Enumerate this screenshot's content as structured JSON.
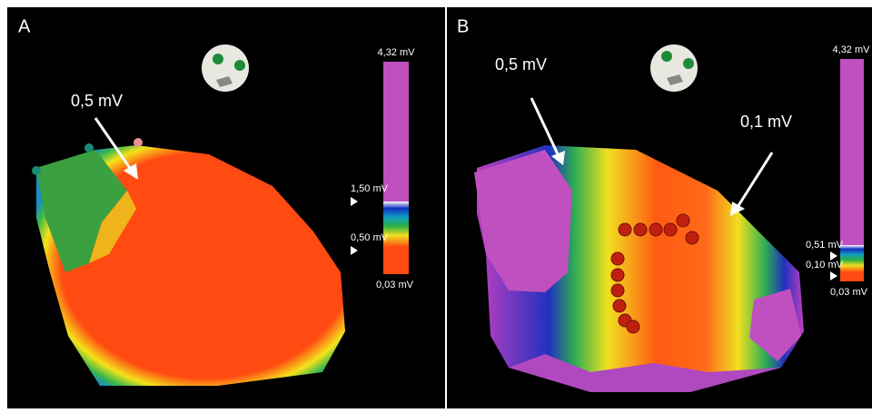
{
  "panels": [
    {
      "label": "A",
      "annotations": [
        "0,5 mV"
      ],
      "scale_labels": [
        "4,32 mV",
        "1,50 mV",
        "0,50 mV",
        "0,03 mV"
      ]
    },
    {
      "label": "B",
      "annotations": [
        "0,5 mV",
        "0,1 mV"
      ],
      "scale_labels": [
        "4,32 mV",
        "0,51 mV",
        "0,10 mV",
        "0,03 mV"
      ]
    }
  ]
}
